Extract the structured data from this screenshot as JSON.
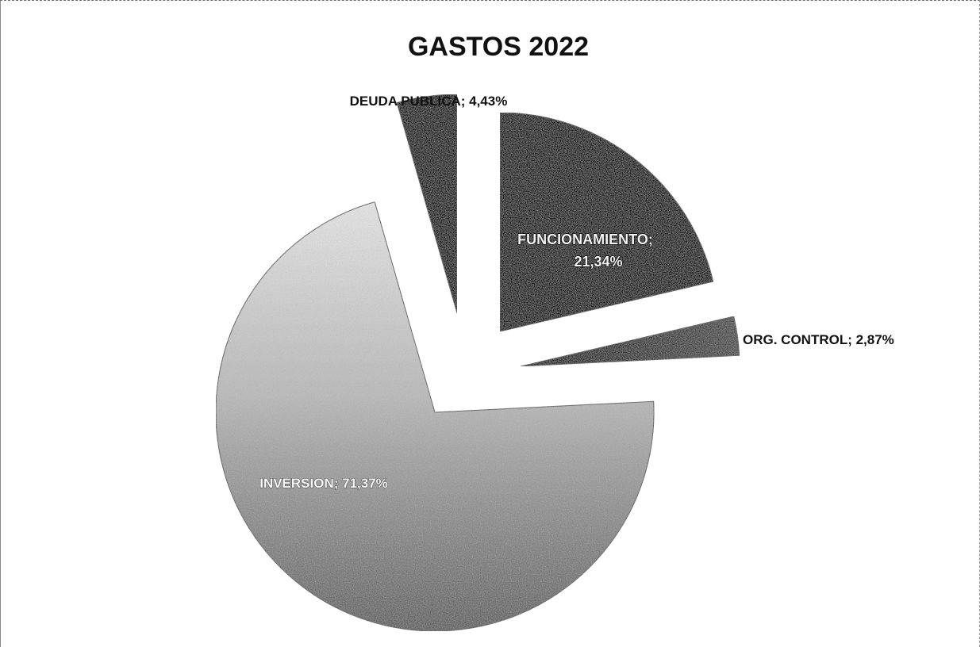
{
  "chart_data": {
    "type": "pie",
    "title": "GASTOS 2022",
    "slices": [
      {
        "label": "FUNCIONAMIENTO",
        "value": 21.34,
        "display": "21,34%",
        "color": "#0a0a0a",
        "exploded": true
      },
      {
        "label": "ORG. CONTROL",
        "value": 2.87,
        "display": "2,87%",
        "color": "#2b2b2b",
        "exploded": true
      },
      {
        "label": "INVERSION",
        "value": 71.37,
        "display": "71,37%",
        "color": "#8f8f8f",
        "exploded": false
      },
      {
        "label": "DEUDA PUBLICA",
        "value": 4.43,
        "display": "4,43%",
        "color": "#0d0d0d",
        "exploded": true
      }
    ],
    "labels": {
      "funcionamiento_line1": "FUNCIONAMIENTO;",
      "funcionamiento_line2": "21,34%",
      "org_control": "ORG. CONTROL; 2,87%",
      "inversion": "INVERSION; 71,37%",
      "deuda_publica": "DEUDA PUBLICA; 4,43%"
    },
    "legend": "none",
    "start_angle_deg": 0,
    "direction": "clockwise"
  }
}
